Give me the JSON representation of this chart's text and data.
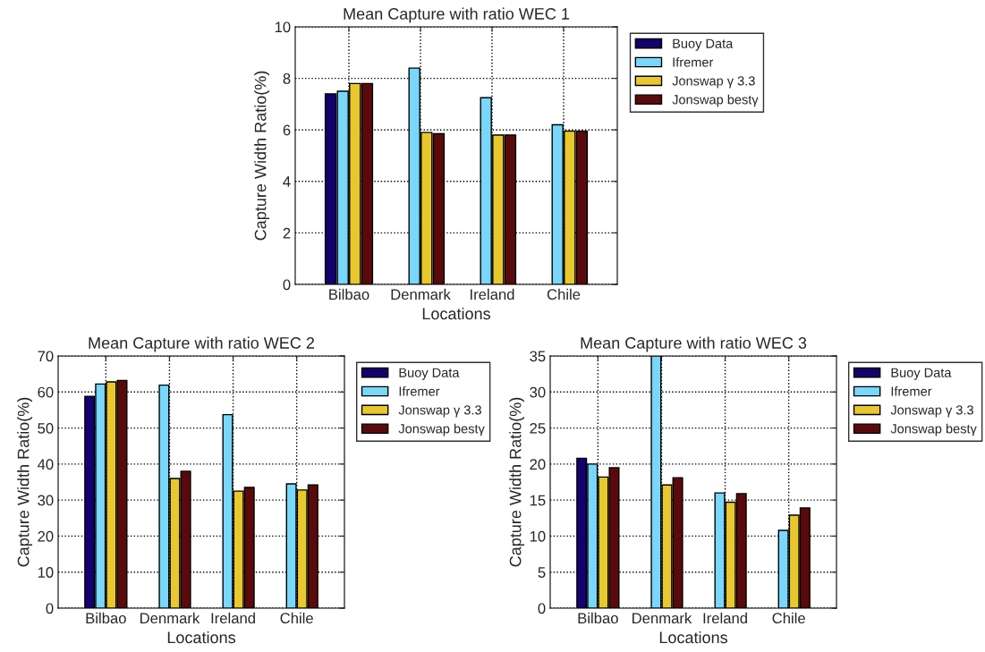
{
  "chart_data": [
    {
      "type": "bar",
      "title": "Mean Capture with ratio WEC 1",
      "xlabel": "Locations",
      "ylabel": "Capture Width Ratio(%)",
      "categories": [
        "Bilbao",
        "Denmark",
        "Ireland",
        "Chile"
      ],
      "ylim": [
        0,
        10
      ],
      "yticks": [
        0,
        2,
        4,
        6,
        8,
        10
      ],
      "grid": true,
      "legend": "right",
      "series": [
        {
          "name": "Buoy Data",
          "color": "#14006e",
          "values": [
            7.4,
            null,
            null,
            null
          ]
        },
        {
          "name": "Ifremer",
          "color": "#78d7fa",
          "values": [
            7.5,
            8.4,
            7.25,
            6.2
          ]
        },
        {
          "name": "Jonswap γ 3.3",
          "color": "#e8c82c",
          "values": [
            7.8,
            5.9,
            5.8,
            5.95
          ]
        },
        {
          "name": "Jonswap bestγ",
          "color": "#5a0a0a",
          "values": [
            7.8,
            5.85,
            5.8,
            5.95
          ]
        }
      ]
    },
    {
      "type": "bar",
      "title": "Mean Capture with ratio WEC 2",
      "xlabel": "Locations",
      "ylabel": "Capture Width Ratio(%)",
      "categories": [
        "Bilbao",
        "Denmark",
        "Ireland",
        "Chile"
      ],
      "ylim": [
        0,
        70
      ],
      "yticks": [
        0,
        10,
        20,
        30,
        40,
        50,
        60,
        70
      ],
      "grid": true,
      "legend": "right",
      "series": [
        {
          "name": "Buoy Data",
          "color": "#14006e",
          "values": [
            58.8,
            null,
            null,
            null
          ]
        },
        {
          "name": "Ifremer",
          "color": "#78d7fa",
          "values": [
            62.2,
            61.9,
            53.7,
            34.5
          ]
        },
        {
          "name": "Jonswap γ 3.3",
          "color": "#e8c82c",
          "values": [
            62.8,
            36,
            32.5,
            32.8
          ]
        },
        {
          "name": "Jonswap bestγ",
          "color": "#5a0a0a",
          "values": [
            63.2,
            38,
            33.5,
            34.2
          ]
        }
      ]
    },
    {
      "type": "bar",
      "title": "Mean Capture with ratio WEC 3",
      "xlabel": "Locations",
      "ylabel": "Capture Width Ratio(%)",
      "categories": [
        "Bilbao",
        "Denmark",
        "Ireland",
        "Chile"
      ],
      "ylim": [
        0,
        35
      ],
      "yticks": [
        0,
        5,
        10,
        15,
        20,
        25,
        30,
        35
      ],
      "grid": true,
      "legend": "right",
      "series": [
        {
          "name": "Buoy Data",
          "color": "#14006e",
          "values": [
            20.8,
            null,
            null,
            null
          ]
        },
        {
          "name": "Ifremer",
          "color": "#78d7fa",
          "values": [
            20,
            35,
            16,
            10.8
          ]
        },
        {
          "name": "Jonswap γ 3.3",
          "color": "#e8c82c",
          "values": [
            18.2,
            17.1,
            14.7,
            12.9
          ]
        },
        {
          "name": "Jonswap bestγ",
          "color": "#5a0a0a",
          "values": [
            19.5,
            18.1,
            15.9,
            13.9
          ]
        }
      ]
    }
  ]
}
